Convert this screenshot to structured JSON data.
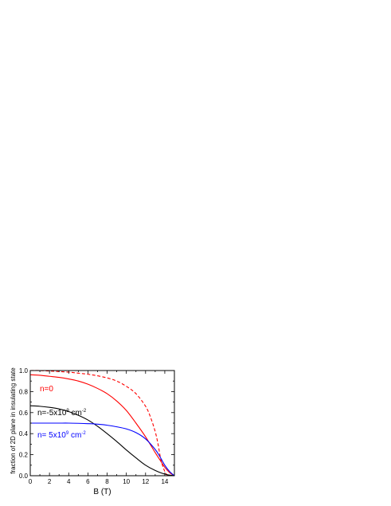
{
  "chart_data": {
    "type": "line",
    "title": "",
    "xlabel": "B (T)",
    "ylabel": "fraction of 2D plane in insulating state",
    "xlim": [
      0,
      15
    ],
    "ylim": [
      0.0,
      1.0
    ],
    "xticks": [
      "0",
      "2",
      "4",
      "6",
      "8",
      "10",
      "12",
      "14"
    ],
    "yticks": [
      "0.0",
      "0.2",
      "0.4",
      "0.6",
      "0.8",
      "1.0"
    ],
    "grid": false,
    "annotations": [
      {
        "id": "n0",
        "text": "n=0",
        "color": "#ff0000",
        "sup": "",
        "tail": ""
      },
      {
        "id": "nneg",
        "text": "n=-5x10",
        "color": "#000000",
        "sup": "9",
        "tail": " cm",
        "sup2": "-2"
      },
      {
        "id": "npos",
        "text": "n= 5x10",
        "color": "#0000ff",
        "sup": "9",
        "tail": " cm",
        "sup2": "-2"
      }
    ],
    "series": [
      {
        "id": "red-dashed",
        "color": "#ff0000",
        "dash": true,
        "x": [
          0,
          1,
          2,
          3,
          4,
          5,
          6,
          7,
          8,
          9,
          10,
          11,
          12,
          12.5,
          13,
          13.3,
          13.6,
          14.0,
          14.3
        ],
        "y": [
          1.0,
          1.0,
          0.995,
          0.99,
          0.985,
          0.975,
          0.965,
          0.95,
          0.93,
          0.9,
          0.85,
          0.78,
          0.66,
          0.56,
          0.42,
          0.3,
          0.15,
          0.04,
          0.0
        ]
      },
      {
        "id": "red-solid",
        "color": "#ff0000",
        "dash": false,
        "x": [
          0,
          1,
          2,
          3,
          4,
          5,
          6,
          7,
          8,
          9,
          10,
          11,
          12,
          13,
          13.5,
          14,
          14.5,
          15
        ],
        "y": [
          0.96,
          0.955,
          0.945,
          0.935,
          0.92,
          0.9,
          0.87,
          0.83,
          0.78,
          0.71,
          0.62,
          0.5,
          0.37,
          0.22,
          0.15,
          0.08,
          0.03,
          0.0
        ]
      },
      {
        "id": "black",
        "color": "#000000",
        "dash": false,
        "x": [
          0,
          1,
          2,
          3,
          4,
          5,
          6,
          7,
          8,
          9,
          10,
          11,
          12,
          13,
          14,
          15
        ],
        "y": [
          0.665,
          0.66,
          0.65,
          0.635,
          0.61,
          0.575,
          0.53,
          0.47,
          0.4,
          0.325,
          0.245,
          0.17,
          0.1,
          0.05,
          0.015,
          0.0
        ]
      },
      {
        "id": "blue",
        "color": "#0000ff",
        "dash": false,
        "x": [
          0,
          1,
          2,
          3,
          4,
          5,
          6,
          7,
          8,
          9,
          10,
          11,
          12,
          13,
          13.5,
          14,
          14.5,
          15
        ],
        "y": [
          0.5,
          0.5,
          0.5,
          0.5,
          0.5,
          0.498,
          0.495,
          0.49,
          0.48,
          0.465,
          0.445,
          0.41,
          0.35,
          0.25,
          0.18,
          0.1,
          0.04,
          0.0
        ]
      }
    ]
  }
}
